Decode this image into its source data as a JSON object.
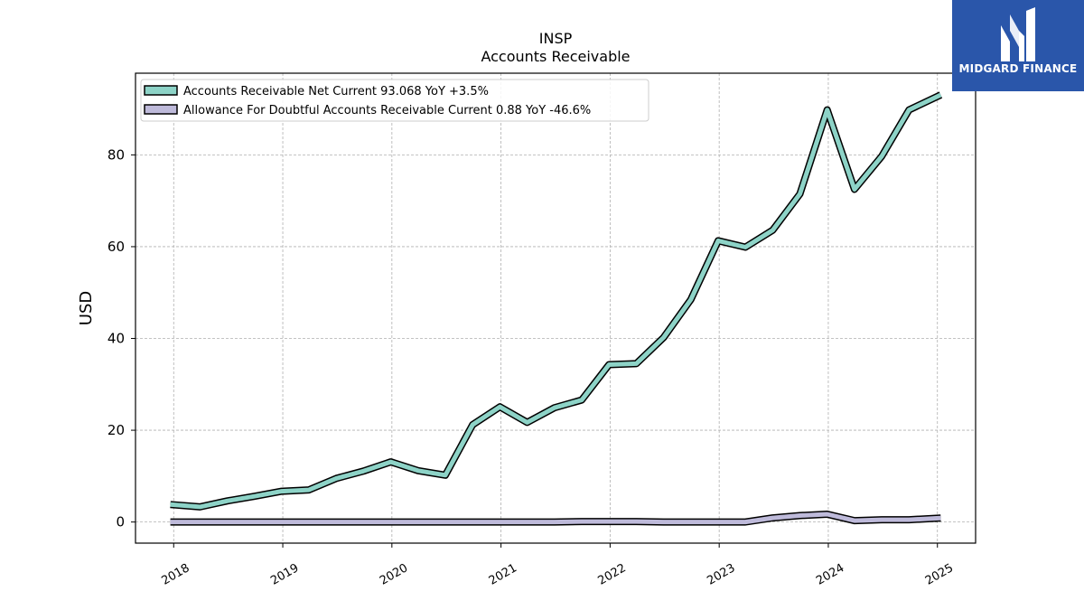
{
  "chart_data": {
    "type": "line",
    "title": "INSP",
    "subtitle": "Accounts Receivable",
    "xlabel": "",
    "ylabel": "USD",
    "xlim": [
      2017.65,
      2025.35
    ],
    "ylim": [
      -4.6,
      97.8
    ],
    "x_ticks": [
      2018,
      2019,
      2020,
      2021,
      2022,
      2023,
      2024,
      2025
    ],
    "x_tick_labels": [
      "2018",
      "2019",
      "2020",
      "2021",
      "2022",
      "2023",
      "2024",
      "2025"
    ],
    "y_ticks": [
      0,
      20,
      40,
      60,
      80
    ],
    "y_tick_labels": [
      "0",
      "20",
      "40",
      "60",
      "80"
    ],
    "grid": true,
    "legend_position": "top-left",
    "series": [
      {
        "name": "Accounts Receivable Net Current",
        "legend_label": "Accounts Receivable Net Current  93.068 YoY +3.5%",
        "color": "#8dd3c7",
        "x": [
          2017.97,
          2018.24,
          2018.49,
          2018.74,
          2018.99,
          2019.24,
          2019.49,
          2019.74,
          2019.99,
          2020.24,
          2020.49,
          2020.74,
          2020.99,
          2021.24,
          2021.49,
          2021.74,
          2021.99,
          2022.24,
          2022.49,
          2022.74,
          2022.99,
          2023.24,
          2023.49,
          2023.74,
          2023.99,
          2024.24,
          2024.49,
          2024.74,
          2025.03
        ],
        "y": [
          3.8,
          3.3,
          4.6,
          5.6,
          6.7,
          7.0,
          9.5,
          11.1,
          13.1,
          11.2,
          10.2,
          21.2,
          25.1,
          21.7,
          24.9,
          26.6,
          34.3,
          34.5,
          40.2,
          48.5,
          61.3,
          59.9,
          63.6,
          71.5,
          89.8,
          72.5,
          79.7,
          89.8,
          93.068
        ]
      },
      {
        "name": "Allowance For Doubtful Accounts Receivable Current",
        "legend_label": "Allowance For Doubtful Accounts Receivable Current  0.88 YoY -46.6%",
        "color": "#bebada",
        "x": [
          2017.97,
          2018.24,
          2018.49,
          2018.74,
          2018.99,
          2019.24,
          2019.49,
          2019.74,
          2019.99,
          2020.24,
          2020.49,
          2020.74,
          2020.99,
          2021.24,
          2021.49,
          2021.74,
          2021.99,
          2022.24,
          2022.49,
          2022.74,
          2022.99,
          2023.24,
          2023.49,
          2023.74,
          2023.99,
          2024.24,
          2024.49,
          2024.74,
          2025.03
        ],
        "y": [
          0.0,
          0.0,
          0.0,
          0.0,
          0.0,
          0.0,
          0.0,
          0.0,
          0.0,
          0.0,
          0.0,
          0.0,
          0.0,
          0.0,
          0.0,
          0.1,
          0.1,
          0.1,
          0.0,
          0.0,
          0.0,
          0.0,
          0.9,
          1.4,
          1.7,
          0.3,
          0.5,
          0.5,
          0.88
        ]
      }
    ]
  },
  "logo": {
    "text": "MIDGARD FINANCE",
    "background": "#2a56aa"
  }
}
